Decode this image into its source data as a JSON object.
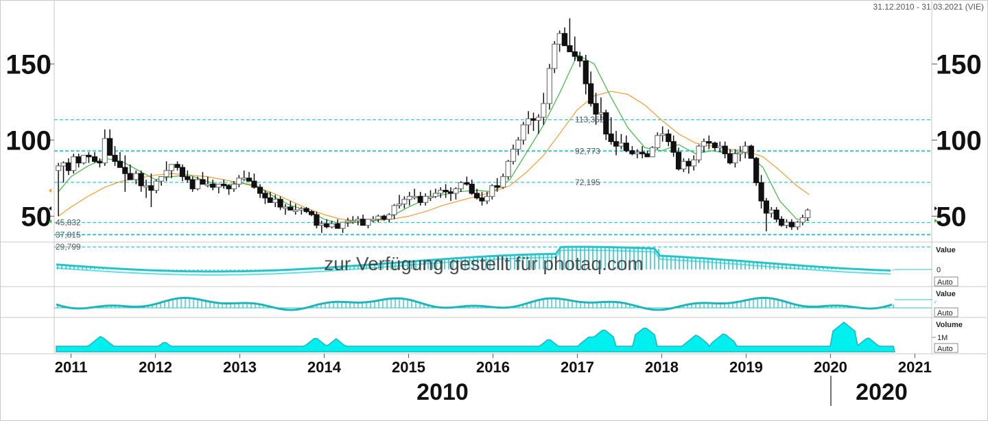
{
  "date_range": "31.12.2010 - 31.03.2021 (VIE)",
  "watermark": "zur Verfügung gestellt für photaq.com",
  "sub_panels": {
    "macd_label": "Value",
    "macd_zero": "0",
    "macd_auto": "Auto",
    "osc_label": "Value",
    "osc_auto": "Auto",
    "volume_label": "Volume",
    "volume_tick": "1M",
    "volume_auto": "Auto"
  },
  "decade_labels": [
    "2010",
    "2020"
  ],
  "chart_data": {
    "type": "candlestick",
    "title": "",
    "xlabel": "",
    "ylabel": "",
    "ylim": [
      33,
      183
    ],
    "yticks": [
      50,
      100,
      150
    ],
    "x_years": [
      "2011",
      "2012",
      "2013",
      "2014",
      "2015",
      "2016",
      "2017",
      "2018",
      "2019",
      "2020",
      "2021"
    ],
    "x_range": [
      2010.8,
      2021.2
    ],
    "grid": false,
    "legend": "none",
    "levels": [
      {
        "value": 113.352,
        "label": "113,352"
      },
      {
        "value": 92.773,
        "label": "92,773"
      },
      {
        "value": 72.195,
        "label": "72,195"
      },
      {
        "value": 45.832,
        "label": "45,832"
      },
      {
        "value": 37.815,
        "label": "37,815"
      },
      {
        "value": 29.799,
        "label": "29,799"
      }
    ],
    "candles_xy": [
      [
        2010.85,
        80,
        85,
        50,
        83
      ],
      [
        2010.91,
        83,
        86,
        72,
        85
      ],
      [
        2010.97,
        85,
        88,
        77,
        80
      ],
      [
        2011.03,
        80,
        91,
        78,
        89
      ],
      [
        2011.09,
        89,
        91,
        82,
        85
      ],
      [
        2011.15,
        85,
        90,
        84,
        90
      ],
      [
        2011.21,
        90,
        92,
        85,
        89
      ],
      [
        2011.28,
        89,
        92,
        85,
        86
      ],
      [
        2011.34,
        86,
        88,
        82,
        85
      ],
      [
        2011.4,
        85,
        107,
        83,
        101
      ],
      [
        2011.46,
        101,
        107,
        90,
        90
      ],
      [
        2011.52,
        90,
        96,
        83,
        86
      ],
      [
        2011.58,
        86,
        92,
        82,
        82
      ],
      [
        2011.64,
        82,
        90,
        66,
        78
      ],
      [
        2011.7,
        78,
        84,
        74,
        74
      ],
      [
        2011.77,
        74,
        80,
        71,
        78
      ],
      [
        2011.83,
        78,
        80,
        66,
        70
      ],
      [
        2011.89,
        70,
        74,
        62,
        70
      ],
      [
        2011.95,
        70,
        78,
        56,
        67
      ],
      [
        2012.01,
        67,
        74,
        65,
        73
      ],
      [
        2012.07,
        73,
        76,
        70,
        76
      ],
      [
        2012.13,
        76,
        86,
        73,
        80
      ],
      [
        2012.19,
        80,
        84,
        75,
        84
      ],
      [
        2012.26,
        84,
        86,
        80,
        82
      ],
      [
        2012.32,
        82,
        84,
        73,
        76
      ],
      [
        2012.38,
        76,
        80,
        72,
        74
      ],
      [
        2012.44,
        74,
        76,
        66,
        68
      ],
      [
        2012.5,
        68,
        76,
        67,
        74
      ],
      [
        2012.56,
        74,
        79,
        71,
        71
      ],
      [
        2012.62,
        71,
        76,
        69,
        71
      ],
      [
        2012.68,
        71,
        74,
        67,
        69
      ],
      [
        2012.75,
        69,
        71,
        65,
        71
      ],
      [
        2012.81,
        71,
        74,
        68,
        70
      ],
      [
        2012.87,
        70,
        71,
        64,
        68
      ],
      [
        2012.93,
        68,
        73,
        66,
        71
      ],
      [
        2012.99,
        71,
        77,
        69,
        75
      ],
      [
        2013.05,
        75,
        80,
        73,
        75
      ],
      [
        2013.11,
        75,
        79,
        73,
        73
      ],
      [
        2013.17,
        73,
        78,
        68,
        69
      ],
      [
        2013.24,
        69,
        71,
        62,
        65
      ],
      [
        2013.3,
        65,
        67,
        58,
        62
      ],
      [
        2013.36,
        62,
        66,
        59,
        59
      ],
      [
        2013.42,
        59,
        64,
        56,
        61
      ],
      [
        2013.48,
        61,
        63,
        54,
        56
      ],
      [
        2013.54,
        56,
        58,
        51,
        56
      ],
      [
        2013.6,
        56,
        60,
        54,
        54
      ],
      [
        2013.66,
        54,
        58,
        51,
        54
      ],
      [
        2013.73,
        54,
        56,
        51,
        55
      ],
      [
        2013.79,
        55,
        56,
        52,
        53
      ],
      [
        2013.85,
        53,
        54,
        50,
        51
      ],
      [
        2013.91,
        51,
        53,
        42,
        44
      ],
      [
        2013.97,
        44,
        47,
        39,
        45
      ],
      [
        2014.03,
        45,
        48,
        42,
        43
      ],
      [
        2014.09,
        43,
        47,
        42,
        45
      ],
      [
        2014.16,
        45,
        48,
        42,
        42
      ],
      [
        2014.22,
        42,
        46,
        39,
        46
      ],
      [
        2014.28,
        46,
        49,
        43,
        47
      ],
      [
        2014.34,
        47,
        50,
        45,
        47
      ],
      [
        2014.4,
        47,
        50,
        44,
        48
      ],
      [
        2014.46,
        48,
        51,
        46,
        44
      ],
      [
        2014.52,
        44,
        48,
        42,
        48
      ],
      [
        2014.58,
        48,
        50,
        46,
        48
      ],
      [
        2014.64,
        48,
        51,
        46,
        50
      ],
      [
        2014.71,
        50,
        51,
        47,
        48
      ],
      [
        2014.77,
        48,
        52,
        46,
        51
      ],
      [
        2014.83,
        51,
        58,
        48,
        57
      ],
      [
        2014.89,
        57,
        64,
        55,
        58
      ],
      [
        2014.95,
        58,
        63,
        55,
        61
      ],
      [
        2015.01,
        61,
        66,
        57,
        63
      ],
      [
        2015.07,
        63,
        68,
        61,
        63
      ],
      [
        2015.14,
        63,
        66,
        57,
        59
      ],
      [
        2015.2,
        59,
        65,
        57,
        63
      ],
      [
        2015.26,
        63,
        67,
        60,
        63
      ],
      [
        2015.32,
        63,
        68,
        62,
        65
      ],
      [
        2015.38,
        65,
        69,
        62,
        67
      ],
      [
        2015.44,
        67,
        71,
        62,
        66
      ],
      [
        2015.5,
        66,
        69,
        60,
        65
      ],
      [
        2015.56,
        65,
        69,
        61,
        68
      ],
      [
        2015.62,
        68,
        73,
        66,
        72
      ],
      [
        2015.69,
        72,
        76,
        70,
        71
      ],
      [
        2015.75,
        71,
        74,
        64,
        65
      ],
      [
        2015.81,
        65,
        68,
        61,
        62
      ],
      [
        2015.87,
        62,
        66,
        57,
        60
      ],
      [
        2015.93,
        60,
        66,
        58,
        63
      ],
      [
        2015.99,
        63,
        71,
        61,
        70
      ],
      [
        2016.05,
        70,
        75,
        66,
        69
      ],
      [
        2016.12,
        69,
        78,
        68,
        76
      ],
      [
        2016.18,
        76,
        87,
        74,
        86
      ],
      [
        2016.24,
        86,
        97,
        84,
        94
      ],
      [
        2016.3,
        94,
        102,
        90,
        100
      ],
      [
        2016.36,
        100,
        112,
        97,
        110
      ],
      [
        2016.42,
        110,
        119,
        104,
        114
      ],
      [
        2016.48,
        114,
        118,
        106,
        113
      ],
      [
        2016.54,
        113,
        117,
        104,
        115
      ],
      [
        2016.6,
        115,
        131,
        110,
        124
      ],
      [
        2016.67,
        124,
        150,
        120,
        147
      ],
      [
        2016.73,
        147,
        165,
        144,
        163
      ],
      [
        2016.79,
        163,
        172,
        158,
        170
      ],
      [
        2016.85,
        170,
        174,
        162,
        162
      ],
      [
        2016.91,
        162,
        180,
        158,
        158
      ],
      [
        2016.97,
        158,
        168,
        152,
        155
      ],
      [
        2017.03,
        155,
        158,
        148,
        152
      ],
      [
        2017.1,
        152,
        156,
        130,
        137
      ],
      [
        2017.16,
        137,
        145,
        122,
        124
      ],
      [
        2017.22,
        124,
        131,
        110,
        117
      ],
      [
        2017.28,
        117,
        128,
        113,
        118
      ],
      [
        2017.34,
        118,
        120,
        100,
        104
      ],
      [
        2017.4,
        104,
        115,
        97,
        99
      ],
      [
        2017.46,
        99,
        106,
        90,
        96
      ],
      [
        2017.52,
        96,
        104,
        94,
        98
      ],
      [
        2017.58,
        98,
        103,
        92,
        93
      ],
      [
        2017.65,
        93,
        96,
        90,
        91
      ],
      [
        2017.71,
        91,
        94,
        88,
        92
      ],
      [
        2017.77,
        92,
        96,
        88,
        91
      ],
      [
        2017.83,
        91,
        93,
        89,
        89
      ],
      [
        2017.89,
        89,
        96,
        89,
        95
      ],
      [
        2017.95,
        95,
        105,
        94,
        103
      ],
      [
        2018.01,
        103,
        109,
        99,
        104
      ],
      [
        2018.08,
        104,
        107,
        96,
        99
      ],
      [
        2018.14,
        99,
        103,
        89,
        92
      ],
      [
        2018.2,
        92,
        95,
        80,
        81
      ],
      [
        2018.26,
        81,
        88,
        79,
        86
      ],
      [
        2018.32,
        86,
        88,
        78,
        83
      ],
      [
        2018.38,
        83,
        90,
        80,
        87
      ],
      [
        2018.44,
        87,
        97,
        85,
        96
      ],
      [
        2018.5,
        96,
        101,
        92,
        99
      ],
      [
        2018.56,
        99,
        103,
        94,
        98
      ],
      [
        2018.63,
        98,
        99,
        93,
        95
      ],
      [
        2018.69,
        95,
        99,
        92,
        96
      ],
      [
        2018.75,
        96,
        99,
        88,
        91
      ],
      [
        2018.81,
        91,
        94,
        84,
        85
      ],
      [
        2018.87,
        85,
        94,
        82,
        91
      ],
      [
        2018.93,
        91,
        96,
        86,
        92
      ],
      [
        2018.99,
        92,
        99,
        88,
        96
      ],
      [
        2019.06,
        96,
        97,
        88,
        88
      ],
      [
        2019.12,
        88,
        89,
        70,
        72
      ],
      [
        2019.18,
        72,
        77,
        55,
        60
      ],
      [
        2019.24,
        60,
        62,
        40,
        52
      ],
      [
        2019.3,
        52,
        56,
        49,
        54
      ],
      [
        2019.36,
        54,
        56,
        46,
        48
      ],
      [
        2019.42,
        48,
        50,
        43,
        44
      ],
      [
        2019.48,
        44,
        48,
        42,
        46
      ],
      [
        2019.54,
        46,
        48,
        41,
        43
      ],
      [
        2019.61,
        43,
        47,
        41,
        46
      ],
      [
        2019.67,
        46,
        51,
        44,
        49
      ],
      [
        2019.73,
        49,
        55,
        47,
        54
      ]
    ],
    "ma_fast_xy": [
      [
        2010.85,
        66
      ],
      [
        2011.0,
        76
      ],
      [
        2011.2,
        83
      ],
      [
        2011.4,
        88
      ],
      [
        2011.6,
        86
      ],
      [
        2011.8,
        80
      ],
      [
        2012.0,
        74
      ],
      [
        2012.2,
        76
      ],
      [
        2012.4,
        77
      ],
      [
        2012.6,
        73
      ],
      [
        2012.8,
        70
      ],
      [
        2013.0,
        72
      ],
      [
        2013.2,
        70
      ],
      [
        2013.4,
        63
      ],
      [
        2013.6,
        57
      ],
      [
        2013.8,
        54
      ],
      [
        2014.0,
        48
      ],
      [
        2014.2,
        45
      ],
      [
        2014.4,
        46
      ],
      [
        2014.6,
        47
      ],
      [
        2014.8,
        50
      ],
      [
        2015.0,
        56
      ],
      [
        2015.2,
        61
      ],
      [
        2015.4,
        64
      ],
      [
        2015.6,
        66
      ],
      [
        2015.8,
        67
      ],
      [
        2016.0,
        66
      ],
      [
        2016.2,
        74
      ],
      [
        2016.4,
        92
      ],
      [
        2016.6,
        110
      ],
      [
        2016.8,
        132
      ],
      [
        2017.0,
        156
      ],
      [
        2017.2,
        150
      ],
      [
        2017.4,
        128
      ],
      [
        2017.6,
        108
      ],
      [
        2017.8,
        95
      ],
      [
        2018.0,
        93
      ],
      [
        2018.2,
        97
      ],
      [
        2018.4,
        91
      ],
      [
        2018.6,
        93
      ],
      [
        2018.8,
        91
      ],
      [
        2019.0,
        92
      ],
      [
        2019.2,
        82
      ],
      [
        2019.4,
        60
      ],
      [
        2019.6,
        48
      ],
      [
        2019.75,
        47
      ]
    ],
    "ma_slow_xy": [
      [
        2010.85,
        50
      ],
      [
        2011.0,
        56
      ],
      [
        2011.2,
        63
      ],
      [
        2011.4,
        69
      ],
      [
        2011.6,
        73
      ],
      [
        2011.8,
        75
      ],
      [
        2012.0,
        77
      ],
      [
        2012.2,
        78
      ],
      [
        2012.4,
        77
      ],
      [
        2012.6,
        76
      ],
      [
        2012.8,
        74
      ],
      [
        2013.0,
        72
      ],
      [
        2013.2,
        69
      ],
      [
        2013.4,
        65
      ],
      [
        2013.6,
        60
      ],
      [
        2013.8,
        55
      ],
      [
        2014.0,
        51
      ],
      [
        2014.2,
        48
      ],
      [
        2014.4,
        47
      ],
      [
        2014.6,
        47
      ],
      [
        2014.8,
        48
      ],
      [
        2015.0,
        50
      ],
      [
        2015.2,
        53
      ],
      [
        2015.4,
        57
      ],
      [
        2015.6,
        60
      ],
      [
        2015.8,
        63
      ],
      [
        2016.0,
        66
      ],
      [
        2016.2,
        70
      ],
      [
        2016.4,
        79
      ],
      [
        2016.6,
        90
      ],
      [
        2016.8,
        105
      ],
      [
        2017.0,
        120
      ],
      [
        2017.2,
        129
      ],
      [
        2017.4,
        132
      ],
      [
        2017.6,
        130
      ],
      [
        2017.8,
        123
      ],
      [
        2018.0,
        113
      ],
      [
        2018.2,
        104
      ],
      [
        2018.4,
        98
      ],
      [
        2018.6,
        96
      ],
      [
        2018.8,
        94
      ],
      [
        2019.0,
        93
      ],
      [
        2019.2,
        89
      ],
      [
        2019.4,
        80
      ],
      [
        2019.6,
        70
      ],
      [
        2019.75,
        64
      ]
    ]
  }
}
